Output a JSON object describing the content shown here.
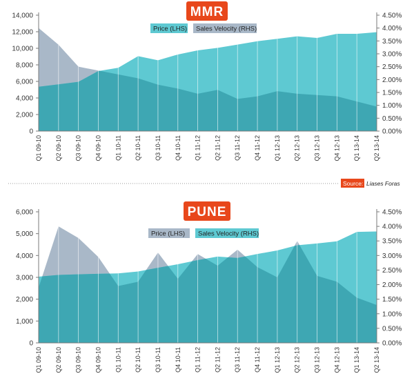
{
  "source": {
    "label": "Source:",
    "name": "Liases Foras"
  },
  "colors": {
    "price_fill": "#5ec9d2",
    "velocity_fill": "#a9b8c8",
    "overlap_fill": "#3ea7b3",
    "badge": "#e8471b",
    "axis": "#7a7a7a",
    "gridline_divider": "#9a9a9a"
  },
  "chart_data": [
    {
      "type": "area",
      "title": "MMR",
      "legend": [
        {
          "name": "Price (LHS)",
          "color": "#5ec9d2"
        },
        {
          "name": "Sales Velocity (RHS)",
          "color": "#a9b8c8"
        }
      ],
      "categories": [
        "Q1 09-10",
        "Q2 09-10",
        "Q3 09-10",
        "Q4 09-10",
        "Q1 10-11",
        "Q2 10-11",
        "Q3 10-11",
        "Q4 10-11",
        "Q1 11-12",
        "Q2 11-12",
        "Q3 11-12",
        "Q4 11-12",
        "Q1 12-13",
        "Q2 12-13",
        "Q3 12-13",
        "Q4 12-13",
        "Q1 13-14",
        "Q2 13-14"
      ],
      "series": [
        {
          "name": "Price (LHS)",
          "axis": "left",
          "front": true,
          "values": [
            5350,
            5650,
            5950,
            7250,
            7650,
            9050,
            8550,
            9250,
            9750,
            10050,
            10450,
            10850,
            11150,
            11450,
            11250,
            11750,
            11750,
            11950
          ]
        },
        {
          "name": "Sales Velocity (RHS)",
          "axis": "right",
          "front": false,
          "values": [
            4.0,
            3.35,
            2.5,
            2.35,
            2.2,
            2.05,
            1.8,
            1.65,
            1.45,
            1.6,
            1.25,
            1.35,
            1.55,
            1.45,
            1.4,
            1.35,
            1.15,
            0.95
          ]
        }
      ],
      "ylim_left": [
        0,
        14000
      ],
      "yticks_left": [
        "0",
        "2,000",
        "4,000",
        "6,000",
        "8,000",
        "10,000",
        "12,000",
        "14,000"
      ],
      "ylim_right": [
        0,
        4.5
      ],
      "yticks_right": [
        "0.00%",
        "0.50%",
        "1.00%",
        "1.50%",
        "2.00%",
        "2.50%",
        "3.00%",
        "3.50%",
        "4.00%",
        "4.50%"
      ]
    },
    {
      "type": "area",
      "title": "PUNE",
      "legend": [
        {
          "name": "Price (LHS)",
          "color": "#a9b8c8"
        },
        {
          "name": "Sales Velocity (RHS)",
          "color": "#5ec9d2"
        }
      ],
      "categories": [
        "Q1 09-10",
        "Q2 09-10",
        "Q3 09-10",
        "Q4 09-10",
        "Q1 10-11",
        "Q2 10-11",
        "Q3 10-11",
        "Q4 10-11",
        "Q1 11-12",
        "Q2 11-12",
        "Q3 11-12",
        "Q4 11-12",
        "Q1 12-13",
        "Q2 12-13",
        "Q3 12-13",
        "Q4 12-13",
        "Q1 13-14",
        "Q2 13-14"
      ],
      "series": [
        {
          "name": "Price (LHS)",
          "axis": "left",
          "front": true,
          "values": [
            3030,
            3110,
            3140,
            3160,
            3180,
            3270,
            3440,
            3600,
            3790,
            3950,
            3890,
            4070,
            4230,
            4470,
            4550,
            4650,
            5080,
            5100
          ]
        },
        {
          "name": "Sales Velocity (RHS)",
          "axis": "right",
          "front": false,
          "values": [
            1.9,
            4.0,
            3.6,
            2.95,
            1.95,
            2.1,
            3.1,
            2.2,
            3.05,
            2.65,
            3.2,
            2.6,
            2.25,
            3.5,
            2.3,
            2.1,
            1.55,
            1.3
          ]
        }
      ],
      "ylim_left": [
        0,
        6000
      ],
      "yticks_left": [
        "0",
        "1,000",
        "2,000",
        "3,000",
        "4,000",
        "5,000",
        "6,000"
      ],
      "ylim_right": [
        0,
        4.5
      ],
      "yticks_right": [
        "0.00%",
        "0.50%",
        "1.00%",
        "1.50%",
        "2.00%",
        "2.50%",
        "3.00%",
        "3.50%",
        "4.00%",
        "4.50%"
      ]
    }
  ]
}
